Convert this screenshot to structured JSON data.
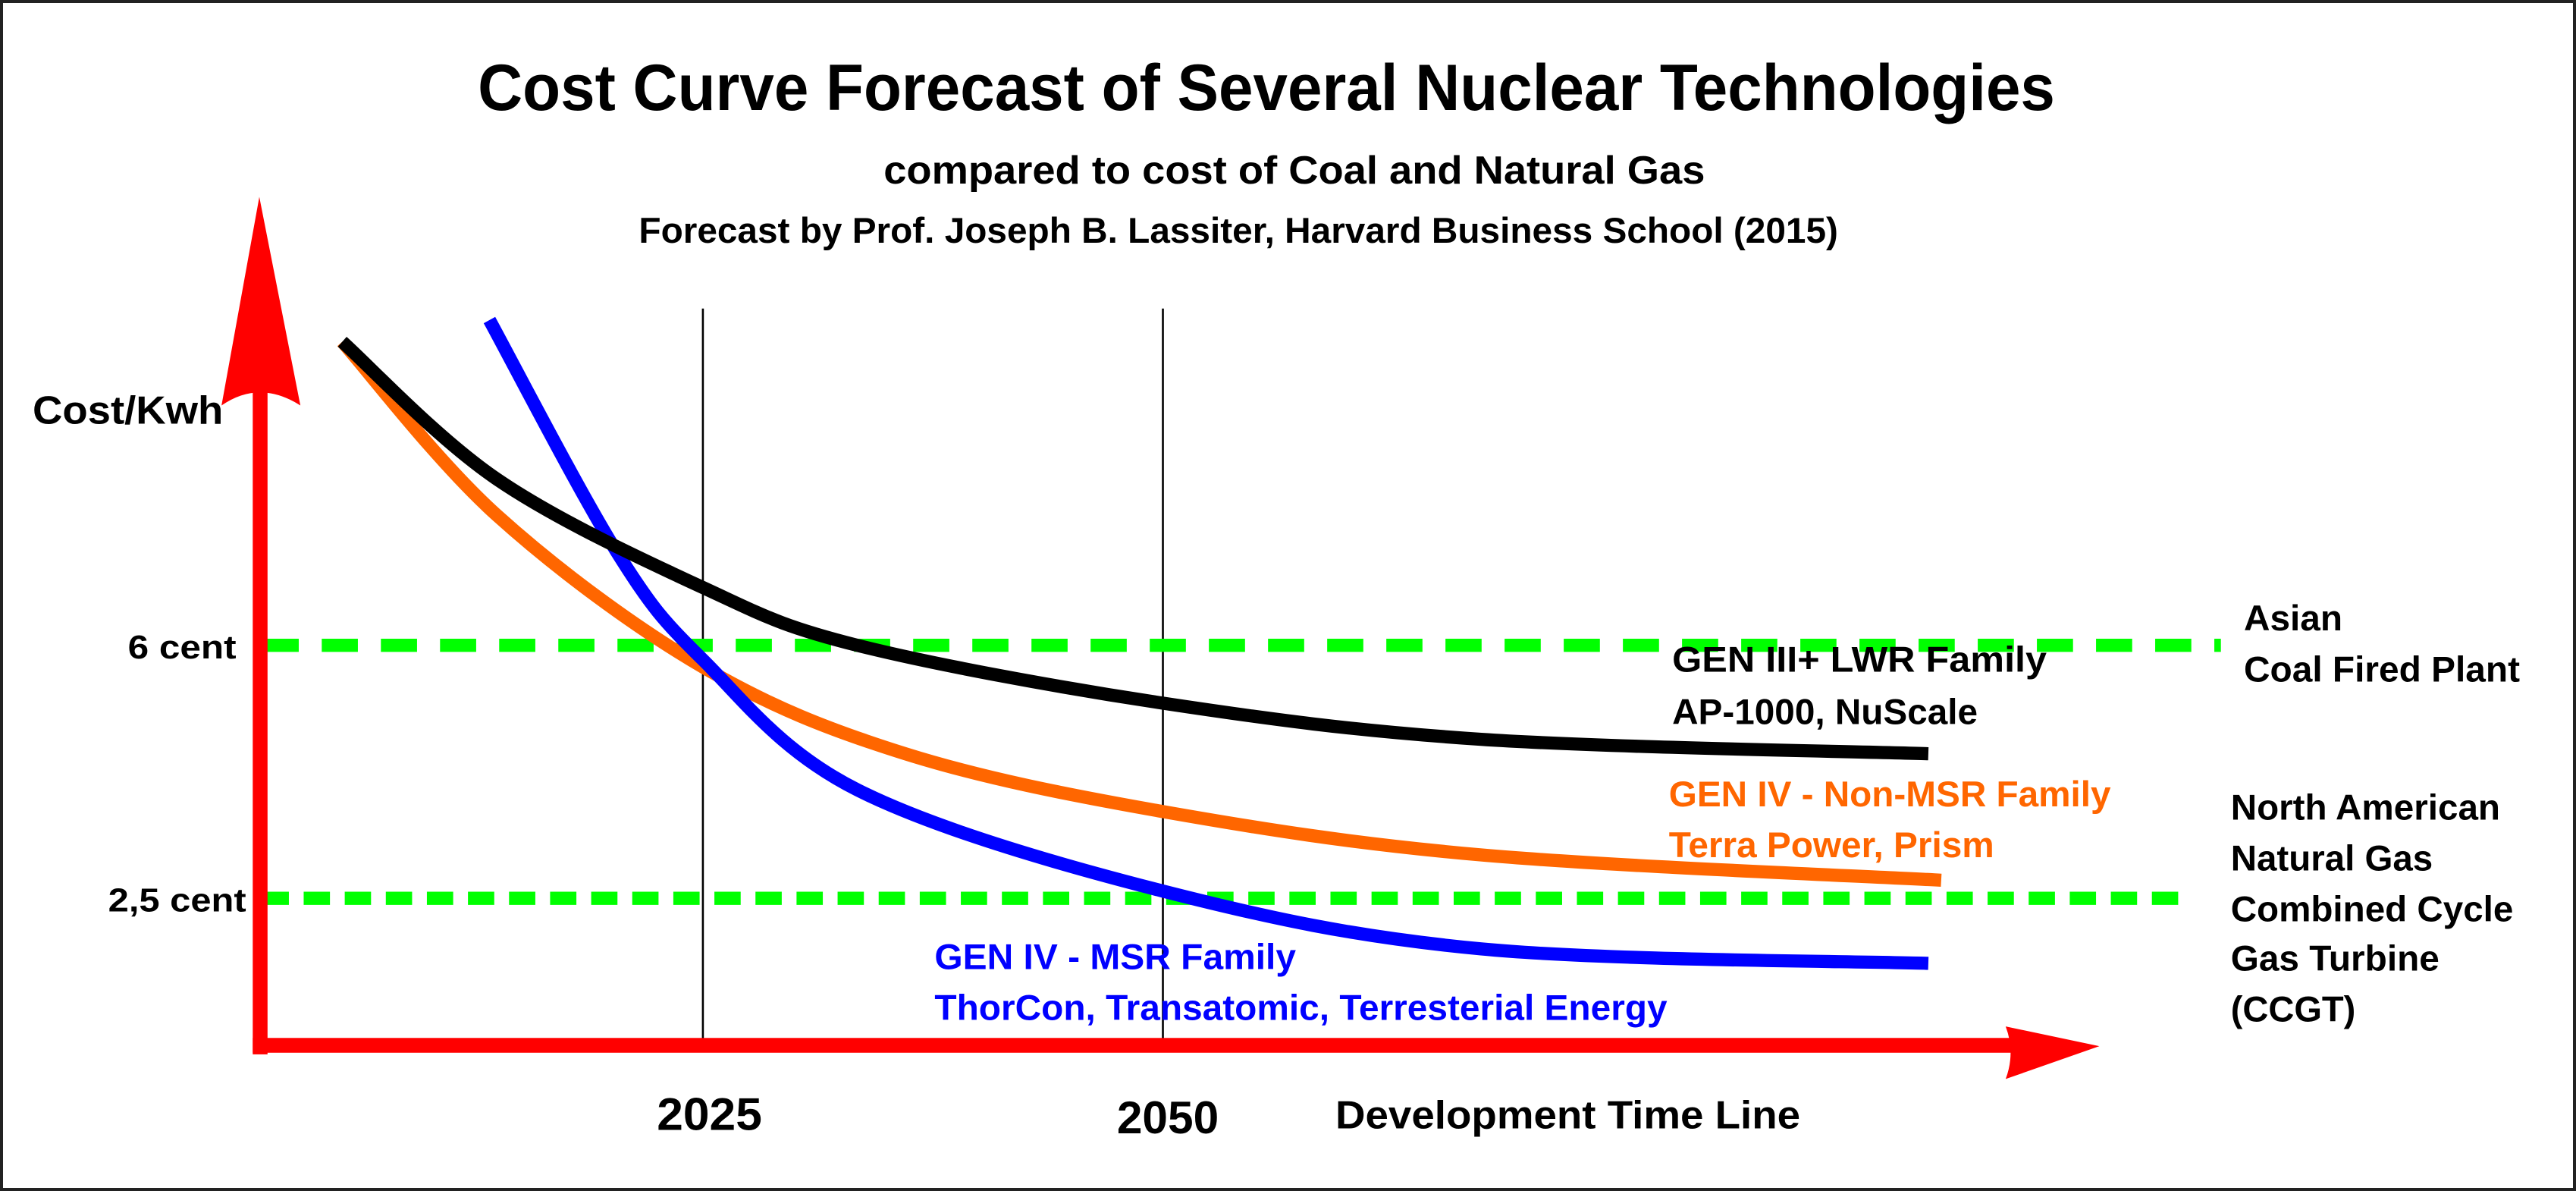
{
  "chart_data": {
    "type": "line",
    "title": "Cost Curve Forecast of Several Nuclear Technologies",
    "subtitle": "compared to cost of Coal and Natural Gas",
    "source": "Forecast by Prof. Joseph B. Lassiter, Harvard Business School (2015)",
    "xlabel": "Development Time Line",
    "ylabel": "Cost/Kwh",
    "x_ticks": [
      {
        "value": 2025,
        "label": "2025"
      },
      {
        "value": 2050,
        "label": "2050"
      }
    ],
    "y_ticks": [
      {
        "value": 6,
        "label": "6 cent"
      },
      {
        "value": 2.5,
        "label": "2,5 cent"
      }
    ],
    "xlim": [
      2000,
      2103
    ],
    "ylim": [
      0,
      13
    ],
    "grid": false,
    "reference_lines": [
      {
        "value": 6,
        "label_lines": [
          "Asian",
          "Coal Fired Plant"
        ],
        "color": "#00ff00",
        "style": "dashed"
      },
      {
        "value": 2.5,
        "label_lines": [
          "North American",
          "Natural Gas",
          "Combined Cycle",
          "Gas Turbine",
          "(CCGT)"
        ],
        "color": "#00ff00",
        "style": "dashed"
      }
    ],
    "vertical_markers": [
      2025,
      2050
    ],
    "series": [
      {
        "name": "GEN III+ LWR Family",
        "label_lines": [
          "GEN III+   LWR Family",
          "AP-1000, NuScale"
        ],
        "color": "#000000",
        "points": [
          [
            2005.4,
            10.2
          ],
          [
            2013.8,
            8.3
          ],
          [
            2025,
            6.8
          ],
          [
            2033.4,
            6.0
          ],
          [
            2050,
            5.2
          ],
          [
            2067.3,
            4.7
          ],
          [
            2091.6,
            4.5
          ]
        ]
      },
      {
        "name": "GEN IV - Non-MSR Family",
        "label_lines": [
          "GEN IV - Non-MSR Family",
          "Terra Power, Prism"
        ],
        "color": "#ff6600",
        "points": [
          [
            2005.4,
            10.2
          ],
          [
            2013.8,
            7.8
          ],
          [
            2025,
            5.7
          ],
          [
            2036,
            4.5
          ],
          [
            2050,
            3.7
          ],
          [
            2067.3,
            3.1
          ],
          [
            2092.3,
            2.75
          ]
        ]
      },
      {
        "name": "GEN IV - MSR Family",
        "label_lines": [
          "GEN IV - MSR Family",
          "ThorCon, Transatomic, Terresterial Energy"
        ],
        "color": "#0000ff",
        "points": [
          [
            2013.4,
            10.5
          ],
          [
            2020.3,
            7.3
          ],
          [
            2025,
            5.8
          ],
          [
            2033.4,
            4.0
          ],
          [
            2050,
            2.6
          ],
          [
            2067.3,
            1.8
          ],
          [
            2091.6,
            1.6
          ]
        ]
      }
    ],
    "axis_color": "#ff0000"
  }
}
